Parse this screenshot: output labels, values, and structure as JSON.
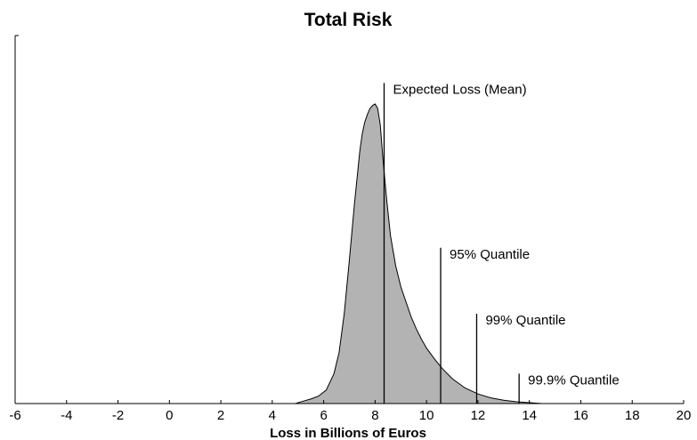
{
  "chart_data": {
    "type": "area",
    "title": "Total Risk",
    "xlabel": "Loss in Billions of Euros",
    "ylabel": "",
    "xlim": [
      -6,
      20
    ],
    "ylim": [
      0,
      1
    ],
    "xticks": [
      -6,
      -4,
      -2,
      0,
      2,
      4,
      6,
      8,
      10,
      12,
      14,
      16,
      18,
      20
    ],
    "yticks_labeled": false,
    "grid": false,
    "legend": "none",
    "fill_color": "#b3b3b3",
    "line_color": "#000000",
    "density": {
      "x": [
        4.9,
        5.2,
        5.5,
        5.8,
        6.1,
        6.4,
        6.6,
        6.8,
        7.0,
        7.2,
        7.4,
        7.5,
        7.6,
        7.7,
        7.8,
        7.9,
        8.0,
        8.1,
        8.2,
        8.3,
        8.45,
        8.6,
        8.8,
        9.0,
        9.2,
        9.4,
        9.6,
        9.8,
        10.0,
        10.3,
        10.6,
        11.0,
        11.5,
        12.0,
        12.5,
        13.0,
        13.5,
        14.0,
        14.5
      ],
      "y": [
        0.0,
        0.008,
        0.015,
        0.025,
        0.045,
        0.1,
        0.17,
        0.3,
        0.48,
        0.67,
        0.84,
        0.9,
        0.94,
        0.965,
        0.985,
        0.995,
        1.0,
        0.985,
        0.93,
        0.82,
        0.68,
        0.56,
        0.46,
        0.39,
        0.34,
        0.29,
        0.25,
        0.215,
        0.185,
        0.15,
        0.118,
        0.083,
        0.052,
        0.032,
        0.019,
        0.011,
        0.006,
        0.003,
        0.0
      ]
    },
    "annotations": [
      {
        "label": "Expected Loss (Mean)",
        "x": 8.35,
        "height": 1.07
      },
      {
        "label": "95% Quantile",
        "x": 10.55,
        "height": 0.52
      },
      {
        "label": "99% Quantile",
        "x": 11.95,
        "height": 0.3
      },
      {
        "label": "99.9% Quantile",
        "x": 13.6,
        "height": 0.1
      }
    ]
  }
}
